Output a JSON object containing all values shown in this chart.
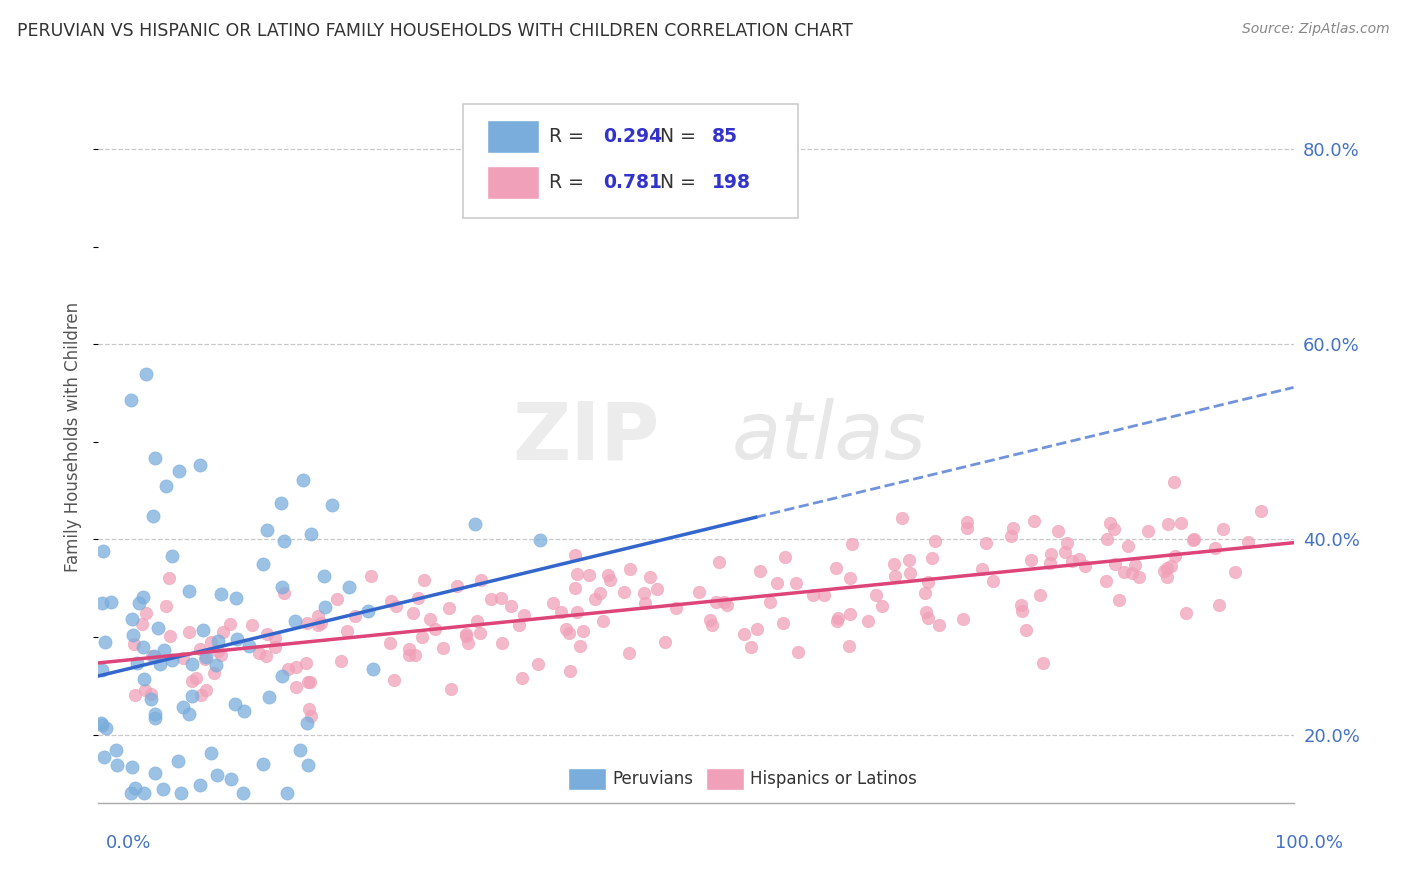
{
  "title": "PERUVIAN VS HISPANIC OR LATINO FAMILY HOUSEHOLDS WITH CHILDREN CORRELATION CHART",
  "source": "Source: ZipAtlas.com",
  "ylabel": "Family Households with Children",
  "watermark_zip": "ZIP",
  "watermark_atlas": "atlas",
  "series": [
    {
      "name": "Peruvians",
      "R": 0.294,
      "N": 85,
      "color": "#7aaddc",
      "line_color": "#3366cc",
      "line_style": "-"
    },
    {
      "name": "Hispanics or Latinos",
      "R": 0.781,
      "N": 198,
      "color": "#f0a0b8",
      "line_color": "#dd4477",
      "line_style": "-"
    }
  ],
  "xlim": [
    0.0,
    1.0
  ],
  "ylim": [
    0.13,
    0.88
  ],
  "yticks": [
    0.2,
    0.4,
    0.6,
    0.8
  ],
  "ytick_labels": [
    "20.0%",
    "40.0%",
    "60.0%",
    "80.0%"
  ],
  "background_color": "#ffffff",
  "grid_color": "#c8c8c8",
  "title_color": "#333333",
  "axis_label_color": "#4472c4",
  "legend_R_color": "#000000",
  "legend_N_color": "#3333cc"
}
